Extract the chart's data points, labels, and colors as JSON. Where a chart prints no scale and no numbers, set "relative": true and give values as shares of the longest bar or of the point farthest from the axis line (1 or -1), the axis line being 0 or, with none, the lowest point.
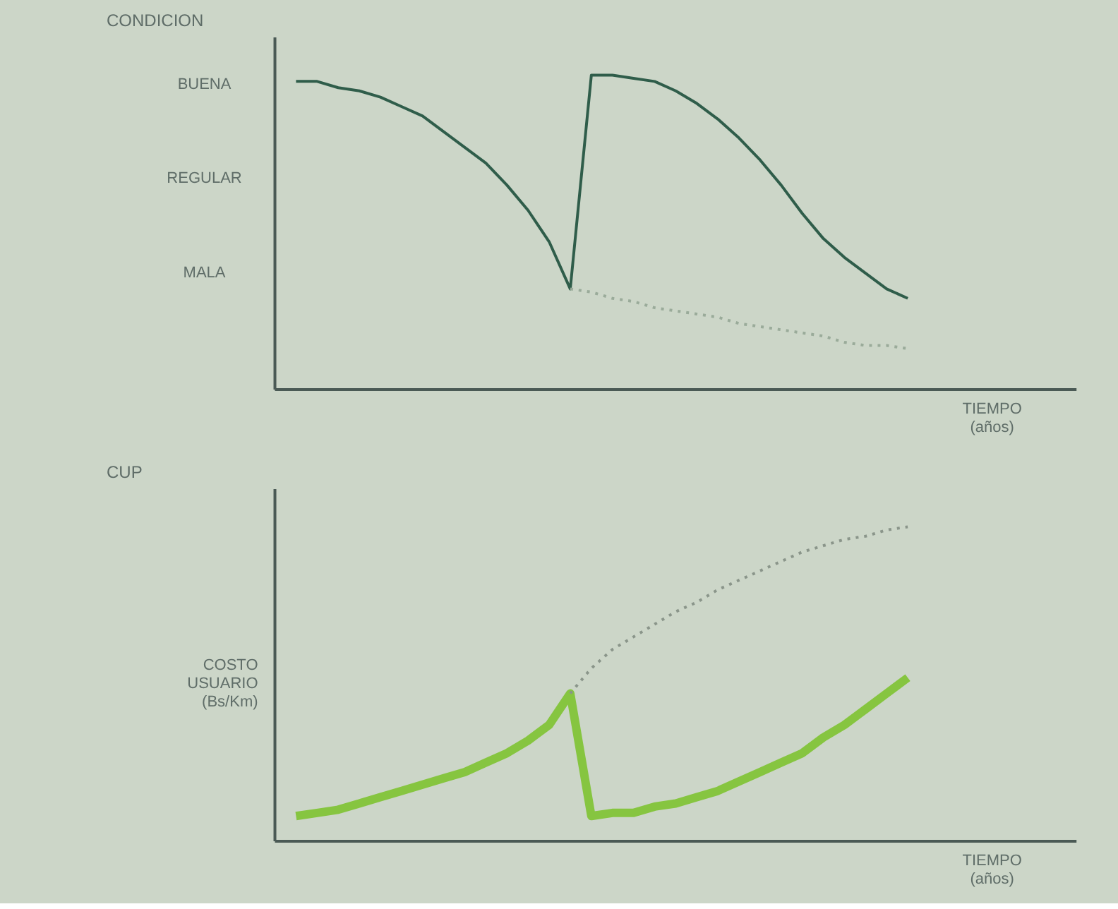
{
  "chart_data": [
    {
      "type": "line",
      "ylabel": "CONDICION",
      "xlabel": "TIEMPO\n(años)",
      "relative": true,
      "categories": [
        null,
        null,
        null,
        null,
        null,
        null,
        null,
        null,
        null,
        null,
        null,
        null,
        null,
        null,
        null,
        null,
        null,
        null,
        null,
        null,
        null,
        null,
        null,
        null,
        null,
        null,
        null,
        null,
        null,
        null
      ],
      "annotations": [
        "BUENA",
        "REGULAR",
        "MALA"
      ],
      "series": [
        {
          "color": "#2f5d4a",
          "line_style": "solid",
          "values": [
            0.98,
            0.98,
            0.96,
            0.95,
            0.93,
            0.9,
            0.87,
            0.82,
            0.77,
            0.72,
            0.65,
            0.57,
            0.47,
            0.32,
            1.0,
            1.0,
            0.99,
            0.98,
            0.95,
            0.91,
            0.86,
            0.8,
            0.73,
            0.65,
            0.56,
            0.48,
            0.42,
            0.37,
            0.32,
            0.29
          ]
        },
        {
          "color": "#9aab9a",
          "line_style": "dotted",
          "values": [
            null,
            null,
            null,
            null,
            null,
            null,
            null,
            null,
            null,
            null,
            null,
            null,
            null,
            0.32,
            0.31,
            0.29,
            0.28,
            0.26,
            0.25,
            0.24,
            0.23,
            0.21,
            0.2,
            0.19,
            0.18,
            0.17,
            0.15,
            0.14,
            0.14,
            0.13
          ]
        }
      ]
    },
    {
      "type": "line",
      "ylabel": "CUP",
      "xlabel": "TIEMPO\n(años)",
      "relative": true,
      "categories": [
        null,
        null,
        null,
        null,
        null,
        null,
        null,
        null,
        null,
        null,
        null,
        null,
        null,
        null,
        null,
        null,
        null,
        null,
        null,
        null,
        null,
        null,
        null,
        null,
        null,
        null,
        null,
        null,
        null,
        null
      ],
      "annotations": [
        "COSTO\nUSUARIO\n(Bs/Km)"
      ],
      "series": [
        {
          "color": "#86c540",
          "line_style": "solid",
          "values": [
            0.08,
            0.09,
            0.1,
            0.12,
            0.14,
            0.16,
            0.18,
            0.2,
            0.22,
            0.25,
            0.28,
            0.32,
            0.37,
            0.47,
            0.08,
            0.09,
            0.09,
            0.11,
            0.12,
            0.14,
            0.16,
            0.19,
            0.22,
            0.25,
            0.28,
            0.33,
            0.37,
            0.42,
            0.47,
            0.52
          ]
        },
        {
          "color": "#8a958a",
          "line_style": "dotted",
          "values": [
            null,
            null,
            null,
            null,
            null,
            null,
            null,
            null,
            null,
            null,
            null,
            null,
            null,
            0.47,
            0.55,
            0.61,
            0.65,
            0.69,
            0.73,
            0.76,
            0.8,
            0.83,
            0.86,
            0.89,
            0.92,
            0.94,
            0.96,
            0.97,
            0.99,
            1.0
          ]
        }
      ]
    }
  ]
}
